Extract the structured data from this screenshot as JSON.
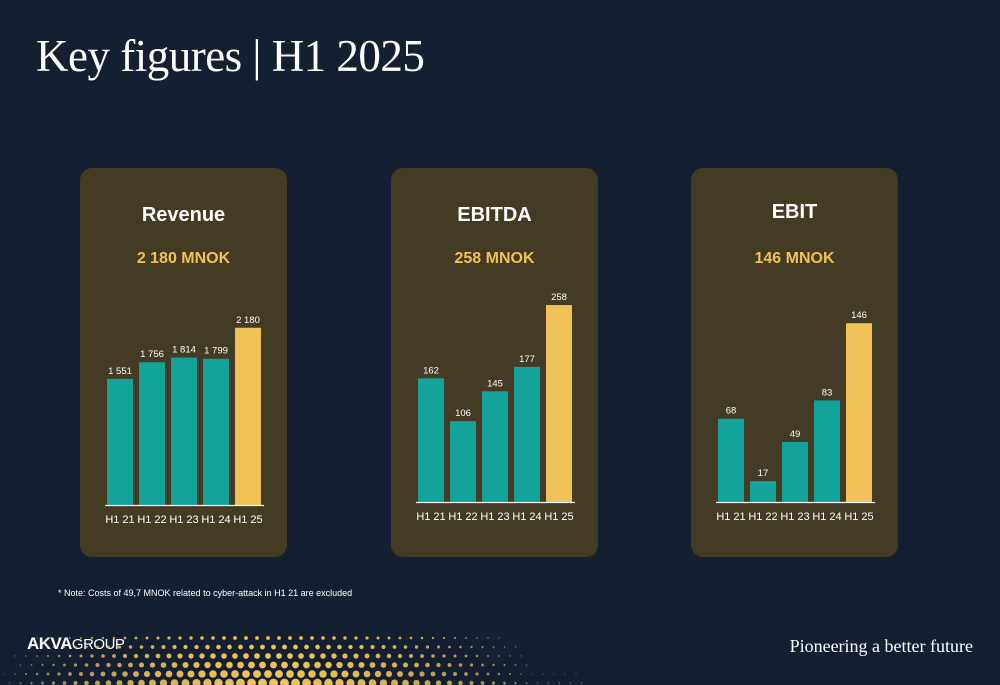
{
  "page": {
    "title": "Key figures | H1 2025",
    "note": "* Note: Costs of 49,7 MNOK related to cyber-attack in H1 21 are excluded",
    "logo_bold": "AKVA",
    "logo_light": "GROUP",
    "tagline": "Pioneering a better future"
  },
  "colors": {
    "background": "#141f31",
    "panel": "#433b23",
    "bar": "#13a39a",
    "bar_highlight": "#f0c257",
    "value_text": "#f0c257"
  },
  "chart_data": [
    {
      "type": "bar",
      "title": "Revenue",
      "headline": "2 180 MNOK",
      "categories": [
        "H1 21",
        "H1 22",
        "H1 23",
        "H1 24",
        "H1 25"
      ],
      "values": [
        1551,
        1756,
        1814,
        1799,
        2180
      ],
      "labels": [
        "1 551",
        "1 756",
        "1 814",
        "1 799",
        "2 180"
      ],
      "ylim": [
        0,
        2300
      ],
      "highlight_index": 4
    },
    {
      "type": "bar",
      "title": "EBITDA",
      "headline": "258 MNOK",
      "categories": [
        "H1 21",
        "H1 22",
        "H1 23",
        "H1 24",
        "H1 25"
      ],
      "values": [
        162,
        106,
        145,
        177,
        258
      ],
      "labels": [
        "162",
        "106",
        "145",
        "177",
        "258"
      ],
      "ylim": [
        0,
        262
      ],
      "highlight_index": 4
    },
    {
      "type": "bar",
      "title": "EBIT",
      "headline": "146  MNOK",
      "categories": [
        "H1 21",
        "H1 22",
        "H1 23",
        "H1 24",
        "H1 25"
      ],
      "values": [
        68,
        17,
        49,
        83,
        146
      ],
      "labels": [
        "68",
        "17",
        "49",
        "83",
        "146"
      ],
      "ylim": [
        0,
        147
      ],
      "highlight_index": 4
    }
  ]
}
